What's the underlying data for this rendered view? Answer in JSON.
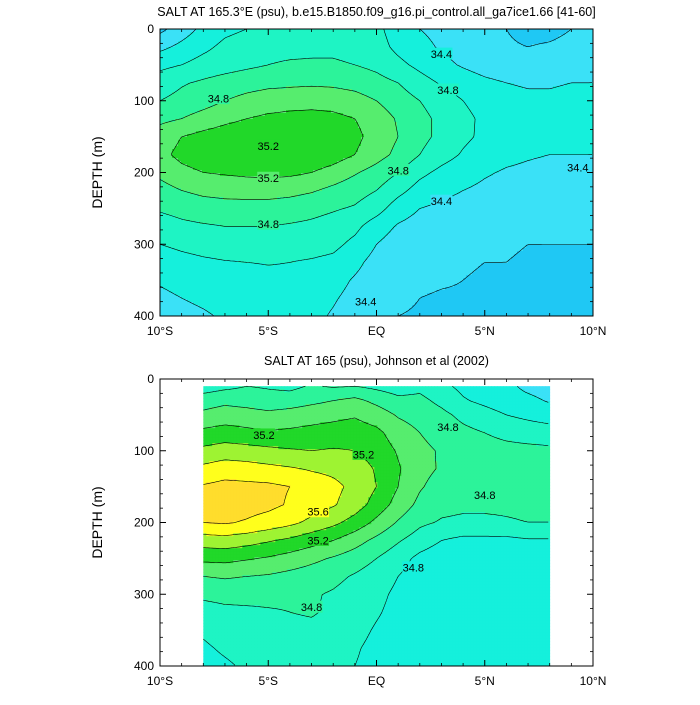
{
  "chart_data": [
    {
      "type": "heatmap",
      "variable": "salinity",
      "title": "SALT AT 165.3°E (psu), b.e15.B1850.f09_g16.pi_control.all_ga7ice1.66 [41-60]",
      "xlabel": "",
      "ylabel": "DEPTH (m)",
      "x_ticks": [
        "10°S",
        "5°S",
        "EQ",
        "5°N",
        "10°N"
      ],
      "x_tick_values": [
        -10,
        -5,
        0,
        5,
        10
      ],
      "y_ticks": [
        "0",
        "100",
        "200",
        "300",
        "400"
      ],
      "y_tick_values": [
        0,
        100,
        200,
        300,
        400
      ],
      "xlim": [
        -10,
        10
      ],
      "ylim": [
        400,
        0
      ],
      "contour_levels": [
        34.2,
        34.4,
        34.6,
        34.8,
        35.0,
        35.2,
        35.4
      ],
      "contour_labels": [
        {
          "text": "34.8",
          "lat": -7.3,
          "depth": 97
        },
        {
          "text": "35.2",
          "lat": -5.0,
          "depth": 163
        },
        {
          "text": "35.2",
          "lat": -5.0,
          "depth": 208
        },
        {
          "text": "34.8",
          "lat": -5.0,
          "depth": 272
        },
        {
          "text": "34.8",
          "lat": 1.0,
          "depth": 197
        },
        {
          "text": "34.8",
          "lat": 3.3,
          "depth": 85
        },
        {
          "text": "34.4",
          "lat": 3.0,
          "depth": 35
        },
        {
          "text": "34.4",
          "lat": 3.0,
          "depth": 240
        },
        {
          "text": "34.4",
          "lat": 9.3,
          "depth": 193
        },
        {
          "text": "34.4",
          "lat": -0.5,
          "depth": 380
        }
      ],
      "data": {
        "lats": [
          -10,
          -9,
          -8,
          -7,
          -6,
          -5,
          -4,
          -3,
          -2,
          -1,
          0,
          1,
          2,
          3,
          4,
          5,
          6,
          7,
          8,
          9,
          10
        ],
        "depths": [
          0,
          25,
          50,
          75,
          100,
          125,
          150,
          175,
          200,
          225,
          250,
          275,
          300,
          325,
          350,
          375,
          400
        ],
        "values": [
          [
            34.15,
            34.3,
            34.45,
            34.55,
            34.6,
            34.65,
            34.65,
            34.7,
            34.75,
            34.7,
            34.65,
            34.5,
            34.4,
            34.35,
            34.3,
            34.25,
            34.2,
            34.15,
            34.15,
            34.2,
            34.25
          ],
          [
            34.35,
            34.45,
            34.55,
            34.65,
            34.7,
            34.75,
            34.75,
            34.75,
            34.75,
            34.72,
            34.68,
            34.55,
            34.45,
            34.38,
            34.32,
            34.28,
            34.22,
            34.2,
            34.22,
            34.25,
            34.3
          ],
          [
            34.55,
            34.6,
            34.68,
            34.72,
            34.76,
            34.8,
            34.82,
            34.83,
            34.83,
            34.8,
            34.75,
            34.65,
            34.55,
            34.45,
            34.38,
            34.32,
            34.28,
            34.28,
            34.3,
            34.32,
            34.35
          ],
          [
            34.7,
            34.78,
            34.83,
            34.88,
            34.92,
            34.95,
            34.96,
            34.97,
            34.96,
            34.93,
            34.87,
            34.8,
            34.68,
            34.58,
            34.5,
            34.44,
            34.4,
            34.38,
            34.38,
            34.4,
            34.4
          ],
          [
            34.8,
            34.86,
            34.92,
            35.0,
            35.06,
            35.1,
            35.12,
            35.13,
            35.12,
            35.08,
            35.0,
            34.9,
            34.8,
            34.7,
            34.6,
            34.52,
            34.46,
            34.44,
            34.44,
            34.46,
            34.48
          ],
          [
            34.95,
            35.0,
            35.08,
            35.15,
            35.2,
            35.24,
            35.26,
            35.27,
            35.25,
            35.2,
            35.1,
            34.98,
            34.86,
            34.75,
            34.65,
            34.56,
            34.5,
            34.48,
            34.48,
            34.5,
            34.52
          ],
          [
            35.1,
            35.2,
            35.26,
            35.3,
            35.33,
            35.35,
            35.36,
            35.36,
            35.33,
            35.25,
            35.12,
            35.0,
            34.86,
            34.75,
            34.64,
            34.56,
            34.5,
            34.48,
            34.45,
            34.45,
            34.46
          ],
          [
            35.15,
            35.25,
            35.3,
            35.34,
            35.36,
            35.38,
            35.38,
            35.36,
            35.3,
            35.2,
            35.08,
            34.95,
            34.8,
            34.68,
            34.58,
            34.5,
            34.45,
            34.42,
            34.4,
            34.4,
            34.4
          ],
          [
            35.05,
            35.15,
            35.2,
            35.22,
            35.24,
            35.25,
            35.24,
            35.2,
            35.12,
            35.02,
            34.92,
            34.8,
            34.65,
            34.55,
            34.48,
            34.42,
            34.38,
            34.36,
            34.34,
            34.34,
            34.34
          ],
          [
            34.92,
            35.0,
            35.05,
            35.07,
            35.08,
            35.08,
            35.06,
            35.02,
            34.95,
            34.88,
            34.8,
            34.66,
            34.52,
            34.45,
            34.4,
            34.36,
            34.33,
            34.32,
            34.3,
            34.3,
            34.3
          ],
          [
            34.82,
            34.86,
            34.9,
            34.92,
            34.92,
            34.92,
            34.9,
            34.86,
            34.82,
            34.78,
            34.68,
            34.5,
            34.4,
            34.36,
            34.33,
            34.3,
            34.28,
            34.27,
            34.26,
            34.26,
            34.26
          ],
          [
            34.72,
            34.76,
            34.78,
            34.8,
            34.8,
            34.8,
            34.78,
            34.76,
            34.72,
            34.65,
            34.5,
            34.38,
            34.32,
            34.29,
            34.27,
            34.25,
            34.24,
            34.23,
            34.22,
            34.22,
            34.22
          ],
          [
            34.6,
            34.64,
            34.67,
            34.69,
            34.7,
            34.7,
            34.69,
            34.68,
            34.65,
            34.55,
            34.4,
            34.3,
            34.27,
            34.25,
            34.24,
            34.22,
            34.21,
            34.2,
            34.2,
            34.2,
            34.2
          ],
          [
            34.5,
            34.54,
            34.57,
            34.59,
            34.6,
            34.61,
            34.6,
            34.58,
            34.55,
            34.45,
            34.33,
            34.26,
            34.24,
            34.22,
            34.21,
            34.2,
            34.2,
            34.19,
            34.19,
            34.19,
            34.19
          ],
          [
            34.42,
            34.46,
            34.49,
            34.52,
            34.53,
            34.55,
            34.56,
            34.52,
            34.47,
            34.38,
            34.3,
            34.24,
            34.22,
            34.21,
            34.2,
            34.19,
            34.19,
            34.18,
            34.18,
            34.18,
            34.18
          ],
          [
            34.36,
            34.4,
            34.43,
            34.46,
            34.48,
            34.51,
            34.52,
            34.48,
            34.42,
            34.34,
            34.27,
            34.22,
            34.2,
            34.19,
            34.19,
            34.18,
            34.18,
            34.17,
            34.17,
            34.17,
            34.17
          ],
          [
            34.3,
            34.35,
            34.38,
            34.42,
            34.45,
            34.48,
            34.5,
            34.45,
            34.38,
            34.3,
            34.24,
            34.2,
            34.19,
            34.18,
            34.18,
            34.17,
            34.17,
            34.16,
            34.16,
            34.16,
            34.16
          ]
        ]
      }
    },
    {
      "type": "heatmap",
      "variable": "salinity",
      "title": "SALT AT 165 (psu), Johnson et al (2002)",
      "xlabel": "",
      "ylabel": "DEPTH (m)",
      "x_ticks": [
        "10°S",
        "5°S",
        "EQ",
        "5°N",
        "10°N"
      ],
      "x_tick_values": [
        -10,
        -5,
        0,
        5,
        10
      ],
      "y_ticks": [
        "0",
        "100",
        "200",
        "300",
        "400"
      ],
      "y_tick_values": [
        0,
        100,
        200,
        300,
        400
      ],
      "xlim": [
        -10,
        10
      ],
      "ylim": [
        400,
        0
      ],
      "data_extent_lat": [
        -8,
        8
      ],
      "data_extent_depth": [
        10,
        400
      ],
      "contour_levels": [
        34.2,
        34.4,
        34.6,
        34.8,
        35.0,
        35.2,
        35.4,
        35.6,
        35.8
      ],
      "contour_labels": [
        {
          "text": "35.2",
          "lat": -5.2,
          "depth": 78
        },
        {
          "text": "35.2",
          "lat": -0.6,
          "depth": 105
        },
        {
          "text": "34.8",
          "lat": 3.3,
          "depth": 67
        },
        {
          "text": "35.6",
          "lat": -2.7,
          "depth": 185
        },
        {
          "text": "35.2",
          "lat": -2.7,
          "depth": 225
        },
        {
          "text": "34.8",
          "lat": 5.0,
          "depth": 162
        },
        {
          "text": "34.8",
          "lat": 1.7,
          "depth": 263
        },
        {
          "text": "34.8",
          "lat": -3.0,
          "depth": 318
        }
      ],
      "data": {
        "lats": [
          -8,
          -7,
          -6,
          -5,
          -4,
          -3,
          -2,
          -1,
          0,
          1,
          2,
          3,
          4,
          5,
          6,
          7,
          8
        ],
        "depths": [
          10,
          30,
          50,
          75,
          100,
          125,
          150,
          175,
          200,
          225,
          250,
          275,
          300,
          325,
          350,
          375,
          400
        ],
        "values": [
          [
            34.7,
            34.75,
            34.8,
            34.78,
            34.75,
            34.82,
            34.78,
            34.8,
            34.75,
            34.7,
            34.75,
            34.65,
            34.55,
            34.5,
            34.45,
            34.35,
            34.3
          ],
          [
            34.9,
            34.95,
            34.92,
            34.88,
            34.9,
            34.95,
            35.0,
            35.05,
            34.95,
            34.85,
            34.85,
            34.75,
            34.62,
            34.55,
            34.48,
            34.45,
            34.38
          ],
          [
            35.05,
            35.1,
            35.08,
            35.05,
            35.08,
            35.12,
            35.15,
            35.18,
            35.1,
            34.98,
            34.92,
            34.85,
            34.75,
            34.68,
            34.6,
            34.55,
            34.5
          ],
          [
            35.25,
            35.28,
            35.25,
            35.22,
            35.24,
            35.26,
            35.28,
            35.3,
            35.25,
            35.1,
            35.0,
            34.92,
            34.85,
            34.8,
            34.75,
            34.72,
            34.7
          ],
          [
            35.45,
            35.5,
            35.48,
            35.45,
            35.42,
            35.4,
            35.42,
            35.4,
            35.32,
            35.18,
            35.05,
            34.98,
            34.92,
            34.88,
            34.86,
            34.85,
            34.84
          ],
          [
            35.65,
            35.7,
            35.68,
            35.65,
            35.62,
            35.58,
            35.55,
            35.5,
            35.38,
            35.22,
            35.06,
            34.98,
            34.92,
            34.9,
            34.88,
            34.88,
            34.87
          ],
          [
            35.82,
            35.86,
            35.85,
            35.84,
            35.8,
            35.72,
            35.65,
            35.55,
            35.4,
            35.2,
            35.02,
            34.92,
            34.88,
            34.86,
            34.86,
            34.86,
            34.86
          ],
          [
            35.88,
            35.9,
            35.88,
            35.85,
            35.78,
            35.7,
            35.62,
            35.5,
            35.32,
            35.12,
            34.95,
            34.86,
            34.84,
            34.84,
            34.84,
            34.85,
            34.85
          ],
          [
            35.8,
            35.82,
            35.78,
            35.72,
            35.65,
            35.55,
            35.45,
            35.32,
            35.15,
            34.98,
            34.84,
            34.78,
            34.76,
            34.76,
            34.78,
            34.8,
            34.8
          ],
          [
            35.5,
            35.52,
            35.48,
            35.42,
            35.36,
            35.28,
            35.2,
            35.08,
            34.95,
            34.82,
            34.7,
            34.6,
            34.55,
            34.55,
            34.55,
            34.58,
            34.58
          ],
          [
            35.25,
            35.26,
            35.22,
            35.18,
            35.12,
            35.05,
            34.98,
            34.9,
            34.8,
            34.68,
            34.55,
            34.48,
            34.45,
            34.44,
            34.44,
            34.45,
            34.45
          ],
          [
            35.0,
            35.02,
            35.0,
            34.98,
            34.94,
            34.9,
            34.85,
            34.78,
            34.7,
            34.6,
            34.5,
            34.45,
            34.42,
            34.42,
            34.42,
            34.42,
            34.42
          ],
          [
            34.85,
            34.88,
            34.87,
            34.86,
            34.84,
            34.82,
            34.78,
            34.72,
            34.65,
            34.56,
            34.48,
            34.44,
            34.42,
            34.42,
            34.42,
            34.42,
            34.42
          ],
          [
            34.7,
            34.74,
            34.76,
            34.78,
            34.8,
            34.82,
            34.76,
            34.7,
            34.62,
            34.54,
            34.47,
            34.44,
            34.42,
            34.42,
            34.42,
            34.42,
            34.42
          ],
          [
            34.62,
            34.66,
            34.7,
            34.72,
            34.74,
            34.75,
            34.72,
            34.66,
            34.58,
            34.52,
            34.46,
            34.43,
            34.42,
            34.42,
            34.42,
            34.42,
            34.42
          ],
          [
            34.58,
            34.62,
            34.65,
            34.68,
            34.7,
            34.7,
            34.68,
            34.62,
            34.55,
            34.5,
            34.45,
            34.43,
            34.42,
            34.42,
            34.42,
            34.42,
            34.42
          ],
          [
            34.55,
            34.58,
            34.62,
            34.65,
            34.66,
            34.66,
            34.64,
            34.6,
            34.54,
            34.49,
            34.45,
            34.43,
            34.42,
            34.42,
            34.42,
            34.42,
            34.42
          ]
        ]
      }
    }
  ]
}
